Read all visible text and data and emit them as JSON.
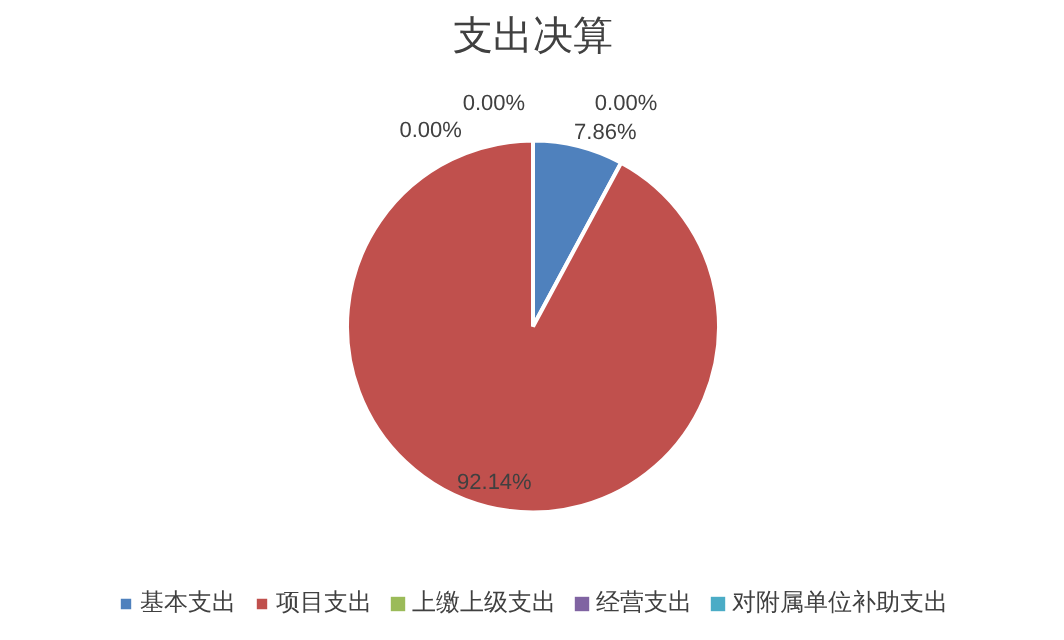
{
  "chart_data": {
    "type": "pie",
    "title": "支出决算",
    "categories": [
      "基本支出",
      "项目支出",
      "上缴上级支出",
      "经营支出",
      "对附属单位补助支出"
    ],
    "values": [
      7.86,
      92.14,
      0.0,
      0.0,
      0.0
    ],
    "colors": [
      "#4f81bd",
      "#c0504d",
      "#9bbb59",
      "#8064a2",
      "#4bacc6"
    ],
    "value_labels": [
      "7.86%",
      "92.14%",
      "0.00%",
      "0.00%",
      "0.00%"
    ],
    "legend": "bottom"
  }
}
